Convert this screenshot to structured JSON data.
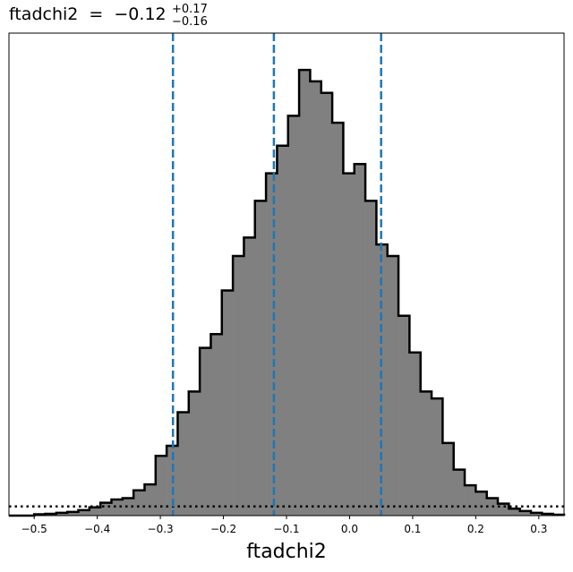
{
  "chart_data": {
    "type": "histogram",
    "title": {
      "parameter": "ftadchi2",
      "equals": "=",
      "median_text": "−0.12",
      "plus_text": "+0.17",
      "minus_text": "−0.16"
    },
    "xlabel": "ftadchi2",
    "ylabel": "",
    "xlim": [
      -0.54,
      0.34
    ],
    "ylim": [
      0,
      1.05
    ],
    "x_ticks": [
      -0.5,
      -0.4,
      -0.3,
      -0.2,
      -0.1,
      0.0,
      0.1,
      0.2,
      0.3
    ],
    "x_tick_labels": [
      "−0.5",
      "−0.4",
      "−0.3",
      "−0.2",
      "−0.1",
      "0.0",
      "0.1",
      "0.2",
      "0.3"
    ],
    "y_ticks_shown": false,
    "grid": false,
    "bin_width": 0.0175,
    "bin_start": -0.5,
    "counts": [
      0.003,
      0.004,
      0.006,
      0.008,
      0.012,
      0.018,
      0.028,
      0.035,
      0.038,
      0.055,
      0.068,
      0.13,
      0.152,
      0.225,
      0.27,
      0.365,
      0.395,
      0.49,
      0.565,
      0.605,
      0.685,
      0.745,
      0.805,
      0.87,
      0.97,
      0.945,
      0.92,
      0.855,
      0.745,
      0.765,
      0.685,
      0.59,
      0.565,
      0.435,
      0.355,
      0.27,
      0.255,
      0.158,
      0.1,
      0.066,
      0.052,
      0.038,
      0.026,
      0.015,
      0.01,
      0.006,
      0.004,
      0.002
    ],
    "fill_color": "#808080",
    "edge_color": "#000000",
    "quantile_lines": {
      "values": [
        -0.28,
        -0.12,
        0.05
      ],
      "color": "#1f77b4",
      "style": "dashed"
    },
    "prior_line": {
      "value": 0.02,
      "color": "#000000",
      "style": "dotted"
    }
  }
}
